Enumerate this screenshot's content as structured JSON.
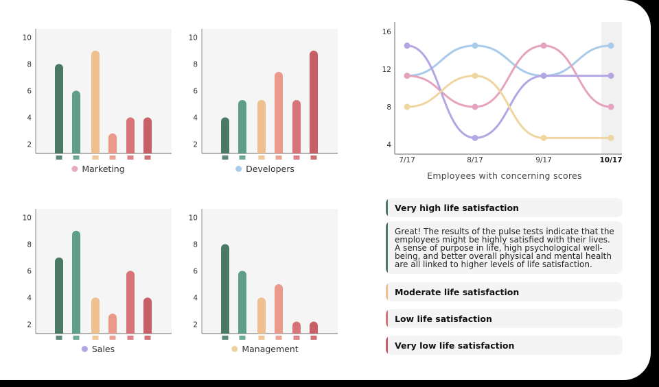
{
  "bar_colors": [
    "#4a7a66",
    "#5f9e88",
    "#eec08f",
    "#e99a8a",
    "#d8737a",
    "#c95f66"
  ],
  "chart_data": [
    {
      "type": "bar",
      "legend": "Marketing",
      "legend_color": "#e7a9bb",
      "yticks": [
        2,
        4,
        6,
        8,
        10
      ],
      "values": [
        8,
        6,
        9,
        2.8,
        4,
        4
      ]
    },
    {
      "type": "bar",
      "legend": "Developers",
      "legend_color": "#a9cbea",
      "yticks": [
        2,
        4,
        6,
        8,
        10
      ],
      "values": [
        4,
        5.3,
        5.3,
        7.4,
        5.3,
        9
      ]
    },
    {
      "type": "bar",
      "legend": "Sales",
      "legend_color": "#b3a6e3",
      "yticks": [
        2,
        4,
        6,
        8,
        10
      ],
      "values": [
        7,
        9,
        4,
        2.8,
        6,
        4
      ]
    },
    {
      "type": "bar",
      "legend": "Management",
      "legend_color": "#ead3a0",
      "yticks": [
        2,
        4,
        6,
        8,
        10
      ],
      "values": [
        8,
        6,
        4,
        5,
        2.2,
        2.2
      ]
    },
    {
      "type": "line",
      "title": "Employees with concerning scores",
      "categories": [
        "7/17",
        "8/17",
        "9/17",
        "10/17"
      ],
      "highlighted": "10/17",
      "yticks": [
        4,
        8,
        12,
        16
      ],
      "series": [
        {
          "legend": "Developers",
          "color": "#a9cbea",
          "values": [
            11.3,
            14.5,
            11.3,
            14.5
          ]
        },
        {
          "legend": "Marketing",
          "color": "#e6a3bd",
          "values": [
            11.3,
            8,
            14.5,
            8
          ]
        },
        {
          "legend": "Sales",
          "color": "#b3a6e3",
          "values": [
            14.5,
            4.7,
            11.3,
            11.3
          ]
        },
        {
          "legend": "Management",
          "color": "#efd6a0",
          "values": [
            8,
            11.3,
            4.7,
            4.7
          ]
        }
      ]
    }
  ],
  "panel": {
    "items": [
      {
        "title": "Very high life satisfaction",
        "color": "#4a7a66"
      },
      {
        "body": "Great! The results of the pulse tests indicate that the employees might be highly satisfied with their lives. A sense of purpose in life, high psychological well-being, and better overall physical and mental health are all linked to higher levels of life satisfaction.",
        "color": "#4a7a66"
      },
      {
        "title": "Moderate life satisfaction",
        "color": "#eec08f"
      },
      {
        "title": "Low life satisfaction",
        "color": "#d8737a"
      },
      {
        "title": "Very low life satisfaction",
        "color": "#c95f66"
      }
    ]
  }
}
